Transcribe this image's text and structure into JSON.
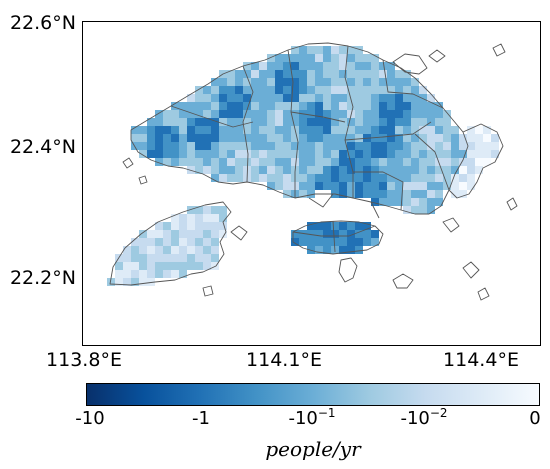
{
  "map": {
    "lat_ticks": [
      "22.6°N",
      "22.4°N",
      "22.2°N"
    ],
    "lon_ticks": [
      "113.8°E",
      "114.1°E",
      "114.4°E"
    ],
    "colormap_stops": [
      "#08306b",
      "#08519c",
      "#2171b5",
      "#4292c6",
      "#6baed6",
      "#9ecae1",
      "#c6dbef",
      "#deebf7",
      "#f7fbff"
    ],
    "outline_color": "#555555"
  },
  "colorbar": {
    "ticks": [
      {
        "base": "-10",
        "exp": ""
      },
      {
        "base": "-1",
        "exp": ""
      },
      {
        "base": "-10",
        "exp": "−1"
      },
      {
        "base": "-10",
        "exp": "−2"
      },
      {
        "base": "0",
        "exp": ""
      }
    ],
    "unit": "people/yr"
  }
}
